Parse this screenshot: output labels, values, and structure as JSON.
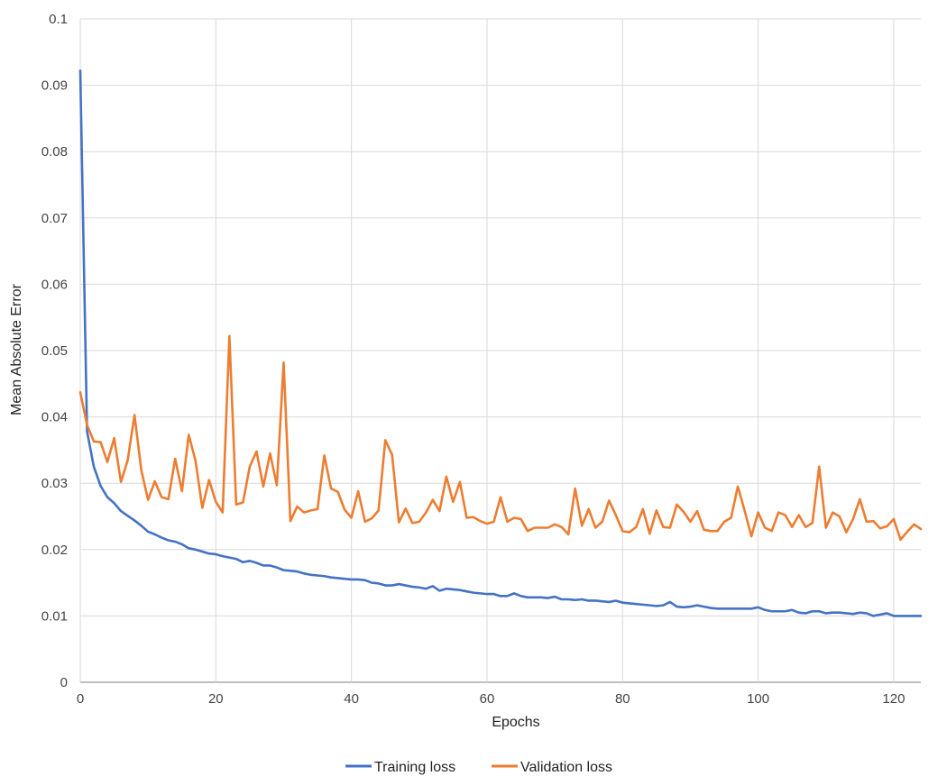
{
  "chart_data": {
    "type": "line",
    "xlabel": "Epochs",
    "ylabel": "Mean Absolute Error",
    "xlim": [
      0,
      124
    ],
    "ylim": [
      0,
      0.1
    ],
    "x_ticks": [
      "0",
      "20",
      "40",
      "60",
      "80",
      "100",
      "120"
    ],
    "y_ticks": [
      "0",
      "0.01",
      "0.02",
      "0.03",
      "0.04",
      "0.05",
      "0.06",
      "0.07",
      "0.08",
      "0.09",
      "0.1"
    ],
    "grid": true,
    "legend_position": "bottom",
    "series": [
      {
        "name": "Training loss",
        "color": "#4472c4",
        "values": [
          0.0922,
          0.0378,
          0.0325,
          0.0296,
          0.0279,
          0.027,
          0.0258,
          0.0251,
          0.0244,
          0.0236,
          0.0227,
          0.0223,
          0.0218,
          0.0214,
          0.0212,
          0.0208,
          0.0202,
          0.02,
          0.0197,
          0.0194,
          0.0193,
          0.019,
          0.0188,
          0.0186,
          0.0181,
          0.0183,
          0.018,
          0.0176,
          0.0176,
          0.0173,
          0.0169,
          0.0168,
          0.0167,
          0.0164,
          0.0162,
          0.0161,
          0.016,
          0.0158,
          0.0157,
          0.0156,
          0.0155,
          0.0155,
          0.0154,
          0.015,
          0.0149,
          0.0146,
          0.0146,
          0.0148,
          0.0146,
          0.0144,
          0.0143,
          0.0141,
          0.0145,
          0.0138,
          0.0141,
          0.014,
          0.0139,
          0.0137,
          0.0135,
          0.0134,
          0.0133,
          0.0133,
          0.013,
          0.013,
          0.0134,
          0.013,
          0.0128,
          0.0128,
          0.0128,
          0.0127,
          0.0129,
          0.0125,
          0.0125,
          0.0124,
          0.0125,
          0.0123,
          0.0123,
          0.0122,
          0.0121,
          0.0123,
          0.012,
          0.0119,
          0.0118,
          0.0117,
          0.0116,
          0.0115,
          0.0116,
          0.0121,
          0.0114,
          0.0113,
          0.0114,
          0.0116,
          0.0114,
          0.0112,
          0.0111,
          0.0111,
          0.0111,
          0.0111,
          0.0111,
          0.0111,
          0.0113,
          0.0109,
          0.0107,
          0.0107,
          0.0107,
          0.0109,
          0.0105,
          0.0104,
          0.0107,
          0.0107,
          0.0104,
          0.0105,
          0.0105,
          0.0104,
          0.0103,
          0.0105,
          0.0104,
          0.01,
          0.0102,
          0.0104,
          0.01,
          0.01,
          0.01,
          0.01,
          0.01
        ]
      },
      {
        "name": "Validation loss",
        "color": "#ed7d31",
        "values": [
          0.0437,
          0.0388,
          0.0363,
          0.0362,
          0.0332,
          0.0368,
          0.0302,
          0.0335,
          0.0403,
          0.032,
          0.0275,
          0.0303,
          0.0279,
          0.0276,
          0.0337,
          0.0288,
          0.0373,
          0.0334,
          0.0263,
          0.0305,
          0.0272,
          0.0256,
          0.0522,
          0.0268,
          0.0271,
          0.0325,
          0.0348,
          0.0295,
          0.0345,
          0.0297,
          0.0482,
          0.0243,
          0.0265,
          0.0256,
          0.0259,
          0.0261,
          0.0342,
          0.0292,
          0.0287,
          0.026,
          0.0248,
          0.0288,
          0.0242,
          0.0247,
          0.0259,
          0.0365,
          0.0343,
          0.0241,
          0.0262,
          0.024,
          0.0242,
          0.0256,
          0.0275,
          0.0258,
          0.031,
          0.0272,
          0.0302,
          0.0248,
          0.0249,
          0.0243,
          0.0239,
          0.0242,
          0.0279,
          0.0242,
          0.0248,
          0.0246,
          0.0228,
          0.0233,
          0.0233,
          0.0233,
          0.0238,
          0.0234,
          0.0223,
          0.0292,
          0.0236,
          0.0261,
          0.0233,
          0.0242,
          0.0274,
          0.0252,
          0.0228,
          0.0226,
          0.0234,
          0.0261,
          0.0224,
          0.0259,
          0.0234,
          0.0233,
          0.0268,
          0.0257,
          0.0242,
          0.0258,
          0.023,
          0.0228,
          0.0228,
          0.0242,
          0.0248,
          0.0295,
          0.0259,
          0.022,
          0.0256,
          0.0233,
          0.0228,
          0.0256,
          0.0252,
          0.0234,
          0.0252,
          0.0234,
          0.024,
          0.0325,
          0.0233,
          0.0256,
          0.025,
          0.0226,
          0.0246,
          0.0276,
          0.0242,
          0.0243,
          0.0232,
          0.0235,
          0.0246,
          0.0215,
          0.0227,
          0.0238,
          0.0231
        ]
      }
    ]
  }
}
